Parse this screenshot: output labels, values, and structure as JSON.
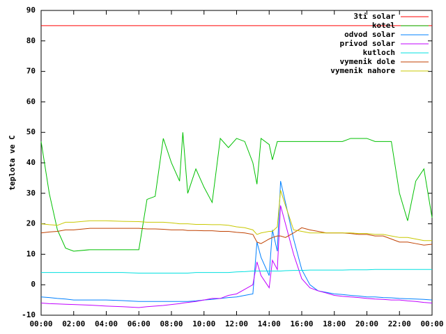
{
  "chart_data": {
    "type": "line",
    "y_label": "teplota ve C",
    "x": [
      0,
      0.5,
      1,
      1.5,
      2,
      3,
      4,
      5,
      6,
      6.5,
      7,
      7.5,
      8,
      8.5,
      8.7,
      9,
      9.5,
      10,
      10.5,
      11,
      11.5,
      12,
      12.5,
      13,
      13.25,
      13.5,
      14,
      14.2,
      14.5,
      14.7,
      15,
      15.5,
      16,
      16.5,
      17,
      17.5,
      18,
      18.5,
      19,
      19.5,
      20,
      20.5,
      21,
      21.5,
      22,
      22.5,
      23,
      23.5,
      24
    ],
    "xlim": [
      0,
      24
    ],
    "xticks": [
      {
        "value": 0,
        "label": "00:00"
      },
      {
        "value": 2,
        "label": "02:00"
      },
      {
        "value": 4,
        "label": "04:00"
      },
      {
        "value": 6,
        "label": "06:00"
      },
      {
        "value": 8,
        "label": "08:00"
      },
      {
        "value": 10,
        "label": "10:00"
      },
      {
        "value": 12,
        "label": "12:00"
      },
      {
        "value": 14,
        "label": "14:00"
      },
      {
        "value": 16,
        "label": "16:00"
      },
      {
        "value": 18,
        "label": "18:00"
      },
      {
        "value": 20,
        "label": "20:00"
      },
      {
        "value": 22,
        "label": "22:00"
      },
      {
        "value": 24,
        "label": "00:00"
      }
    ],
    "ylim": [
      -10,
      90
    ],
    "yticks": [
      -10,
      0,
      10,
      20,
      30,
      40,
      50,
      60,
      70,
      80,
      90
    ],
    "legend": "top-right",
    "series": [
      {
        "name": "3ti solar",
        "color": "#ff0000",
        "values": [
          85,
          85,
          85,
          85,
          85,
          85,
          85,
          85,
          85,
          85,
          85,
          85,
          85,
          85,
          85,
          85,
          85,
          85,
          85,
          85,
          85,
          85,
          85,
          85,
          85,
          85,
          85,
          85,
          85,
          85,
          85,
          85,
          85,
          85,
          85,
          85,
          85,
          85,
          85,
          85,
          85,
          85,
          85,
          85,
          85,
          85,
          85,
          85,
          85
        ]
      },
      {
        "name": "kotel",
        "color": "#00c000",
        "values": [
          47,
          30,
          18,
          12,
          11,
          11.5,
          11.5,
          11.5,
          11.5,
          28,
          29,
          48,
          40,
          34,
          50,
          30,
          38,
          32,
          27,
          48,
          45,
          48,
          47,
          40,
          33,
          48,
          46,
          41,
          47,
          47,
          47,
          47,
          47,
          47,
          47,
          47,
          47,
          47,
          48,
          48,
          48,
          47,
          47,
          47,
          30,
          21,
          34,
          38,
          22
        ]
      },
      {
        "name": "odvod solar",
        "color": "#0080ff",
        "values": [
          -4,
          -4.2,
          -4.5,
          -4.7,
          -5,
          -5,
          -5,
          -5.2,
          -5.5,
          -5.5,
          -5.5,
          -5.5,
          -5.5,
          -5.5,
          -5.5,
          -5.5,
          -5.3,
          -5,
          -4.8,
          -4.5,
          -4.2,
          -4,
          -3.5,
          -3,
          14,
          9,
          3,
          18,
          11,
          34,
          27,
          15,
          5,
          0,
          -2,
          -2.5,
          -3,
          -3.2,
          -3.5,
          -3.7,
          -4,
          -4,
          -4.2,
          -4.3,
          -4.5,
          -4.6,
          -4.7,
          -4.8,
          -5
        ]
      },
      {
        "name": "privod solar",
        "color": "#c000ff",
        "values": [
          -6,
          -6.2,
          -6.3,
          -6.4,
          -6.5,
          -6.7,
          -7,
          -7.2,
          -7.5,
          -7.2,
          -7,
          -6.8,
          -6.5,
          -6.2,
          -6,
          -5.8,
          -5.5,
          -5,
          -4.5,
          -4.5,
          -3.5,
          -3,
          -1.5,
          0,
          7.5,
          3,
          -1,
          8,
          5,
          26,
          20,
          10,
          2,
          -1,
          -2,
          -2.7,
          -3.5,
          -3.8,
          -4,
          -4.2,
          -4.5,
          -4.7,
          -4.8,
          -5,
          -5,
          -5.3,
          -5.5,
          -5.8,
          -6
        ]
      },
      {
        "name": "kutloch",
        "color": "#00e0e0",
        "values": [
          4,
          4,
          4,
          4,
          4,
          4,
          4,
          4,
          3.8,
          3.8,
          3.8,
          3.8,
          3.8,
          3.8,
          3.8,
          3.8,
          4,
          4,
          4,
          4,
          4,
          4.2,
          4.3,
          4.5,
          4.5,
          4.5,
          4.5,
          4.5,
          4.5,
          4.5,
          4.6,
          4.7,
          4.7,
          4.8,
          4.8,
          4.8,
          4.8,
          4.8,
          4.9,
          4.9,
          4.9,
          5,
          5,
          5,
          5,
          5,
          5,
          5,
          5
        ]
      },
      {
        "name": "vymenik dole",
        "color": "#c04000",
        "values": [
          17,
          17.3,
          17.5,
          18,
          18,
          18.5,
          18.5,
          18.5,
          18.5,
          18.3,
          18.3,
          18.2,
          18,
          18,
          18,
          17.8,
          17.8,
          17.7,
          17.7,
          17.5,
          17.5,
          17.2,
          17,
          16.5,
          14,
          13.5,
          15,
          15.5,
          16,
          16,
          15.5,
          17,
          18.7,
          18,
          17.5,
          17,
          17,
          17,
          16.8,
          16.5,
          16.5,
          16,
          16,
          15,
          14,
          14,
          13.5,
          13,
          13.3
        ]
      },
      {
        "name": "vymenik nahore",
        "color": "#c8c800",
        "values": [
          20,
          19.7,
          19.5,
          20.5,
          20.5,
          21,
          21,
          20.8,
          20.7,
          20.5,
          20.5,
          20.5,
          20.3,
          20,
          20,
          20,
          19.8,
          19.8,
          19.7,
          19.7,
          19.5,
          19,
          18.7,
          18,
          16.5,
          17,
          17.5,
          17.5,
          19,
          31,
          26,
          18,
          17.5,
          17,
          17,
          17,
          17,
          17,
          17,
          16.8,
          16.8,
          16.5,
          16.5,
          16,
          15.5,
          15.5,
          15,
          14.5,
          14.5
        ]
      }
    ]
  }
}
